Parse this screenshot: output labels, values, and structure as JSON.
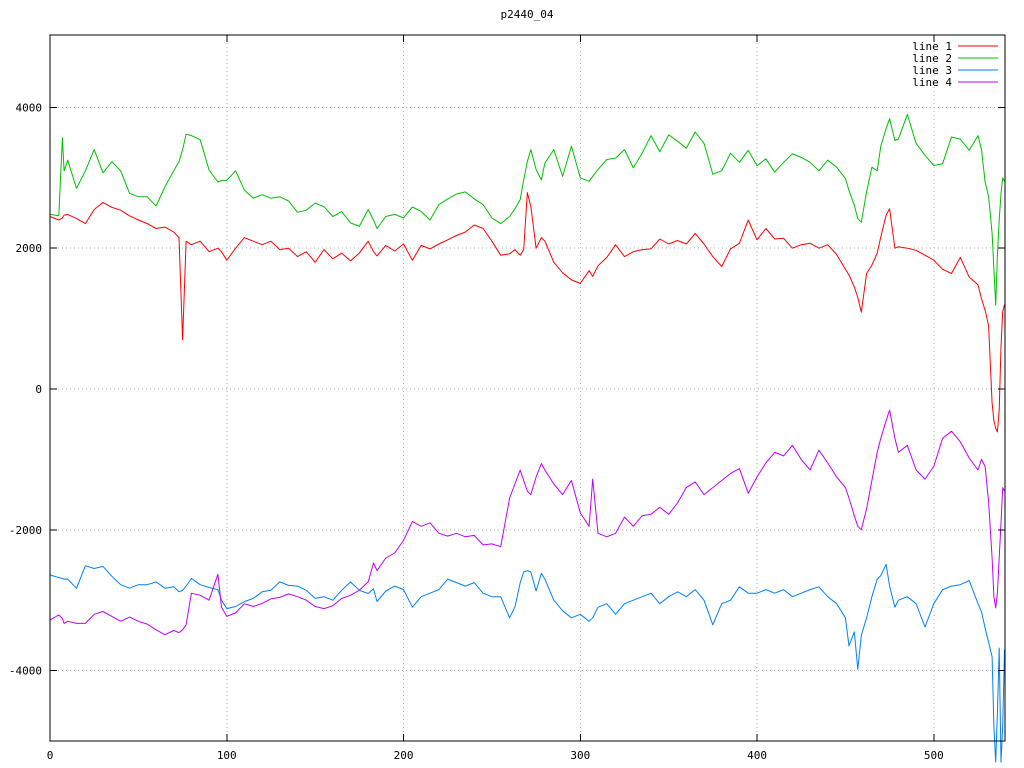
{
  "title": "p2440_04",
  "palette": {
    "background": "#ffffff",
    "border": "#000000",
    "grid": "#b0b0b0",
    "text": "#000000"
  },
  "legend": {
    "position": "top-right",
    "entries": [
      {
        "label": "line 1",
        "color": "#ff0000"
      },
      {
        "label": "line 2",
        "color": "#00c000"
      },
      {
        "label": "line 3",
        "color": "#0080ff"
      },
      {
        "label": "line 4",
        "color": "#c000ff"
      }
    ]
  },
  "chart_data": {
    "type": "line",
    "title": "p2440_04",
    "xlabel": "",
    "ylabel": "",
    "xlim": [
      0,
      540
    ],
    "ylim": [
      -5000,
      5000
    ],
    "x_ticks": [
      0,
      100,
      200,
      300,
      400,
      500
    ],
    "y_ticks": [
      -4000,
      -2000,
      0,
      2000,
      4000
    ],
    "grid": "dotted",
    "legend_position": "top-right",
    "x": [
      0,
      5,
      7,
      8,
      10,
      15,
      20,
      25,
      30,
      35,
      40,
      45,
      50,
      55,
      60,
      65,
      70,
      73,
      75,
      77,
      80,
      85,
      90,
      95,
      97,
      100,
      105,
      110,
      115,
      120,
      125,
      130,
      135,
      140,
      145,
      150,
      155,
      160,
      165,
      170,
      175,
      180,
      183,
      185,
      190,
      195,
      200,
      205,
      210,
      215,
      220,
      225,
      230,
      235,
      240,
      245,
      250,
      255,
      260,
      263,
      266,
      268,
      270,
      272,
      275,
      278,
      280,
      285,
      290,
      295,
      300,
      305,
      307,
      310,
      315,
      320,
      325,
      330,
      335,
      340,
      345,
      350,
      355,
      360,
      365,
      370,
      375,
      380,
      385,
      390,
      395,
      400,
      405,
      410,
      415,
      420,
      425,
      430,
      435,
      440,
      445,
      450,
      452,
      455,
      457,
      459,
      462,
      465,
      468,
      470,
      473,
      475,
      478,
      480,
      485,
      490,
      495,
      500,
      505,
      510,
      515,
      520,
      525,
      527,
      529,
      531,
      533,
      534,
      535,
      536,
      537,
      538,
      539,
      540
    ],
    "series": [
      {
        "name": "line 1",
        "color": "#ff0000",
        "values": [
          2450,
          2400,
          2430,
          2470,
          2480,
          2420,
          2350,
          2550,
          2650,
          2580,
          2540,
          2460,
          2400,
          2350,
          2280,
          2300,
          2230,
          2150,
          700,
          2100,
          2050,
          2100,
          1950,
          2000,
          1950,
          1830,
          2000,
          2150,
          2100,
          2050,
          2100,
          1980,
          2000,
          1880,
          1950,
          1800,
          1980,
          1850,
          1930,
          1820,
          1930,
          2100,
          1950,
          1890,
          2040,
          1960,
          2060,
          1830,
          2040,
          1990,
          2060,
          2120,
          2180,
          2230,
          2330,
          2280,
          2100,
          1900,
          1920,
          1980,
          1900,
          1980,
          2790,
          2600,
          2000,
          2150,
          2100,
          1800,
          1650,
          1550,
          1500,
          1680,
          1600,
          1750,
          1870,
          2050,
          1880,
          1950,
          1980,
          1990,
          2130,
          2060,
          2110,
          2060,
          2210,
          2060,
          1880,
          1740,
          1990,
          2070,
          2400,
          2120,
          2280,
          2130,
          2140,
          2000,
          2050,
          2070,
          2000,
          2050,
          1910,
          1700,
          1620,
          1450,
          1300,
          1090,
          1640,
          1760,
          1930,
          2160,
          2470,
          2560,
          2000,
          2020,
          2000,
          1970,
          1900,
          1830,
          1700,
          1640,
          1870,
          1590,
          1480,
          1280,
          1120,
          900,
          -200,
          -450,
          -560,
          -610,
          -300,
          600,
          1100,
          1200
        ]
      },
      {
        "name": "line 2",
        "color": "#00c000",
        "values": [
          2480,
          2460,
          3570,
          3100,
          3250,
          2850,
          3100,
          3400,
          3070,
          3230,
          3100,
          2780,
          2730,
          2730,
          2600,
          2870,
          3100,
          3230,
          3400,
          3620,
          3600,
          3540,
          3110,
          2940,
          2960,
          2965,
          3100,
          2825,
          2710,
          2760,
          2710,
          2730,
          2670,
          2510,
          2540,
          2640,
          2590,
          2450,
          2520,
          2360,
          2310,
          2550,
          2400,
          2280,
          2450,
          2480,
          2430,
          2585,
          2520,
          2400,
          2620,
          2700,
          2770,
          2800,
          2700,
          2620,
          2430,
          2350,
          2450,
          2560,
          2690,
          2970,
          3230,
          3400,
          3120,
          2970,
          3210,
          3400,
          3020,
          3450,
          3000,
          2950,
          3020,
          3120,
          3260,
          3280,
          3400,
          3140,
          3350,
          3600,
          3370,
          3610,
          3520,
          3420,
          3650,
          3490,
          3050,
          3100,
          3350,
          3220,
          3390,
          3170,
          3270,
          3080,
          3220,
          3340,
          3290,
          3220,
          3100,
          3250,
          3150,
          2990,
          2820,
          2610,
          2420,
          2370,
          2800,
          3150,
          3100,
          3450,
          3700,
          3840,
          3530,
          3550,
          3900,
          3490,
          3320,
          3175,
          3200,
          3580,
          3550,
          3390,
          3600,
          3400,
          2940,
          2730,
          2210,
          1700,
          1190,
          1900,
          2400,
          2775,
          3000,
          2950
        ]
      },
      {
        "name": "line 3",
        "color": "#0080ff",
        "values": [
          -2640,
          -2680,
          -2690,
          -2700,
          -2700,
          -2830,
          -2510,
          -2550,
          -2520,
          -2660,
          -2780,
          -2830,
          -2780,
          -2780,
          -2740,
          -2830,
          -2810,
          -2880,
          -2860,
          -2800,
          -2690,
          -2780,
          -2820,
          -2850,
          -3000,
          -3120,
          -3090,
          -3020,
          -2975,
          -2880,
          -2860,
          -2740,
          -2790,
          -2800,
          -2860,
          -2975,
          -2950,
          -3000,
          -2860,
          -2740,
          -2860,
          -2905,
          -2840,
          -3020,
          -2870,
          -2800,
          -2850,
          -3100,
          -2950,
          -2900,
          -2850,
          -2700,
          -2750,
          -2800,
          -2750,
          -2900,
          -2950,
          -2950,
          -3250,
          -3100,
          -2750,
          -2600,
          -2580,
          -2600,
          -2870,
          -2620,
          -2700,
          -3000,
          -3150,
          -3250,
          -3200,
          -3300,
          -3250,
          -3100,
          -3050,
          -3200,
          -3050,
          -3000,
          -2950,
          -2900,
          -3050,
          -2950,
          -2880,
          -2950,
          -2850,
          -3000,
          -3350,
          -3050,
          -3000,
          -2810,
          -2900,
          -2900,
          -2850,
          -2900,
          -2850,
          -2950,
          -2900,
          -2850,
          -2810,
          -2950,
          -3050,
          -3250,
          -3650,
          -3450,
          -3980,
          -3500,
          -3250,
          -2950,
          -2700,
          -2650,
          -2490,
          -2800,
          -3100,
          -3000,
          -2950,
          -3050,
          -3380,
          -3050,
          -2850,
          -2800,
          -2780,
          -2720,
          -3050,
          -3165,
          -3395,
          -3600,
          -3805,
          -4800,
          -5300,
          -4600,
          -3680,
          -5300,
          -4800,
          -3700
        ]
      },
      {
        "name": "line 4",
        "color": "#c000ff",
        "values": [
          -3280,
          -3210,
          -3260,
          -3330,
          -3300,
          -3330,
          -3330,
          -3200,
          -3160,
          -3230,
          -3300,
          -3240,
          -3300,
          -3340,
          -3420,
          -3490,
          -3430,
          -3460,
          -3420,
          -3350,
          -2900,
          -2930,
          -3000,
          -2630,
          -3100,
          -3230,
          -3180,
          -3050,
          -3090,
          -3045,
          -2980,
          -2960,
          -2910,
          -2950,
          -3000,
          -3090,
          -3120,
          -3080,
          -2975,
          -2930,
          -2860,
          -2740,
          -2470,
          -2580,
          -2400,
          -2330,
          -2150,
          -1880,
          -1950,
          -1900,
          -2050,
          -2090,
          -2050,
          -2100,
          -2080,
          -2215,
          -2200,
          -2240,
          -1550,
          -1350,
          -1150,
          -1300,
          -1450,
          -1500,
          -1250,
          -1060,
          -1150,
          -1350,
          -1500,
          -1300,
          -1760,
          -1950,
          -1280,
          -2050,
          -2100,
          -2050,
          -1820,
          -1950,
          -1800,
          -1780,
          -1680,
          -1780,
          -1620,
          -1400,
          -1320,
          -1500,
          -1400,
          -1300,
          -1200,
          -1130,
          -1480,
          -1250,
          -1050,
          -900,
          -950,
          -800,
          -1000,
          -1150,
          -870,
          -1050,
          -1250,
          -1400,
          -1550,
          -1800,
          -1950,
          -2000,
          -1700,
          -1300,
          -900,
          -700,
          -450,
          -300,
          -700,
          -900,
          -800,
          -1150,
          -1280,
          -1100,
          -700,
          -600,
          -750,
          -980,
          -1150,
          -1000,
          -1100,
          -1600,
          -2400,
          -2950,
          -3110,
          -2900,
          -2400,
          -1900,
          -1400,
          -1450
        ]
      }
    ]
  }
}
